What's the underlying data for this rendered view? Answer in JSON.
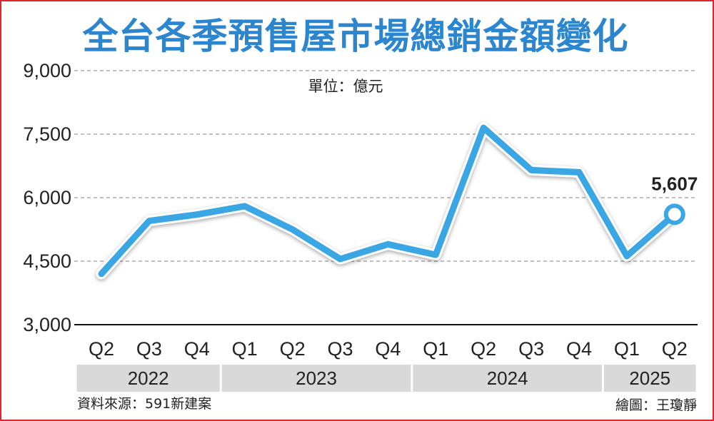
{
  "title": "全台各季預售屋市場總銷金額變化",
  "unit_label": "單位：億元",
  "source": "資料來源：591新建案",
  "credit": "繪圖：王瓊靜",
  "colors": {
    "line": "#3aa6e3",
    "title": "#2b86cf",
    "frame": "#e3262b",
    "band": "#d9d9d9",
    "grid": "#999999"
  },
  "chart_data": {
    "type": "line",
    "title": "全台各季預售屋市場總銷金額變化",
    "unit": "單位：億元",
    "x": [
      "Q2",
      "Q3",
      "Q4",
      "Q1",
      "Q2",
      "Q3",
      "Q4",
      "Q1",
      "Q2",
      "Q3",
      "Q4",
      "Q1",
      "Q2"
    ],
    "years": [
      {
        "label": "2022",
        "quarters": 3
      },
      {
        "label": "2023",
        "quarters": 4
      },
      {
        "label": "2024",
        "quarters": 4
      },
      {
        "label": "2025",
        "quarters": 2
      }
    ],
    "series": [
      {
        "values": [
          4200,
          5450,
          5600,
          5800,
          5250,
          4550,
          4900,
          4650,
          7650,
          6650,
          6600,
          4620,
          5607
        ]
      }
    ],
    "data_labels": [
      {
        "index": 12,
        "text": "5,607"
      }
    ],
    "yticks": [
      "9,000",
      "7,500",
      "6,000",
      "4,500",
      "3,000"
    ],
    "ylim": [
      3000,
      9000
    ],
    "grid": true
  }
}
